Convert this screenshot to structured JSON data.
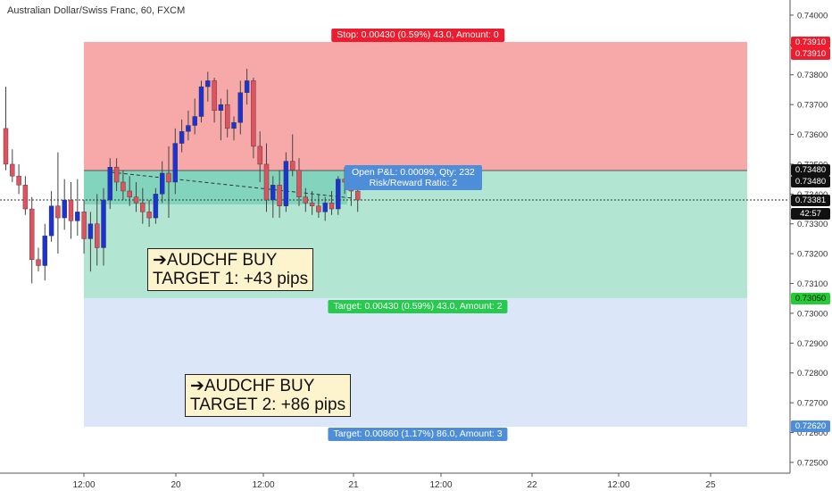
{
  "title": "Australian Dollar/Swiss Franc, 60, FXCM",
  "colors": {
    "stop_zone": "#f7a9a9",
    "target1_zone": "#b2e6d2",
    "target1_overlap": "#82d4bd",
    "target2_zone": "#dbe7f8",
    "bull_candle": "#1c33d4",
    "bear_candle": "#e05260",
    "stop_tag": "#ee1c2f",
    "target1_tag": "#27c94f",
    "target2_tag": "#4e8ed9"
  },
  "price_axis": {
    "ticks": [
      "0.74000",
      "0.73900",
      "0.73800",
      "0.73700",
      "0.73600",
      "0.73500",
      "0.73400",
      "0.73300",
      "0.73200",
      "0.73100",
      "0.73000",
      "0.72900",
      "0.72800",
      "0.72700",
      "0.72600",
      "0.72500"
    ],
    "labels": [
      {
        "text": "0.73910",
        "kind": "stop"
      },
      {
        "text": "0.73910",
        "kind": "stop"
      },
      {
        "text": "0.73480",
        "kind": "entry"
      },
      {
        "text": "0.73480",
        "kind": "entry"
      },
      {
        "text": "0.73381",
        "kind": "current"
      },
      {
        "text": "42:57",
        "kind": "timer"
      },
      {
        "text": "0.73050",
        "kind": "target1"
      },
      {
        "text": "0.72620",
        "kind": "target2"
      }
    ]
  },
  "time_axis": {
    "ticks": [
      "12:00",
      "20",
      "12:00",
      "21",
      "12:00",
      "22",
      "12:00",
      "25"
    ]
  },
  "position": {
    "stop_label": "Stop: 0.00430 (0.59%) 43.0, Amount: 0",
    "target1_label": "Target: 0.00430 (0.59%) 43.0, Amount: 2",
    "target2_label": "Target: 0.00860 (1.17%) 86.0, Amount: 3",
    "pnl_line1": "Open P&L: 0.00099, Qty: 232",
    "pnl_line2": "Risk/Reward Ratio: 2"
  },
  "notes": [
    {
      "line1": "➔AUDCHF BUY",
      "line2": "TARGET 1: +43 pips"
    },
    {
      "line1": "➔AUDCHF BUY",
      "line2": "TARGET 2: +86 pips"
    }
  ],
  "chart_data": {
    "type": "candlestick",
    "title": "Australian Dollar/Swiss Franc, 60, FXCM",
    "xlabel": "",
    "ylabel": "",
    "ylim": [
      0.7246,
      0.7408
    ],
    "grid": false,
    "levels": {
      "stop": 0.7391,
      "entry": 0.7348,
      "target1": 0.7305,
      "target2": 0.7262,
      "current": 0.73381
    },
    "candles": [
      {
        "o": 0.7362,
        "h": 0.7376,
        "l": 0.7348,
        "c": 0.735
      },
      {
        "o": 0.735,
        "h": 0.7355,
        "l": 0.7344,
        "c": 0.7346
      },
      {
        "o": 0.7346,
        "h": 0.735,
        "l": 0.734,
        "c": 0.7343
      },
      {
        "o": 0.7343,
        "h": 0.7346,
        "l": 0.7333,
        "c": 0.7335
      },
      {
        "o": 0.7335,
        "h": 0.7339,
        "l": 0.731,
        "c": 0.7318
      },
      {
        "o": 0.7318,
        "h": 0.7322,
        "l": 0.7314,
        "c": 0.7316
      },
      {
        "o": 0.7316,
        "h": 0.733,
        "l": 0.7311,
        "c": 0.7326
      },
      {
        "o": 0.7326,
        "h": 0.7341,
        "l": 0.7324,
        "c": 0.7336
      },
      {
        "o": 0.7336,
        "h": 0.7354,
        "l": 0.732,
        "c": 0.7332
      },
      {
        "o": 0.7332,
        "h": 0.7345,
        "l": 0.7328,
        "c": 0.7338
      },
      {
        "o": 0.7338,
        "h": 0.7344,
        "l": 0.7325,
        "c": 0.7331
      },
      {
        "o": 0.7331,
        "h": 0.7345,
        "l": 0.7326,
        "c": 0.7334
      },
      {
        "o": 0.7334,
        "h": 0.7338,
        "l": 0.732,
        "c": 0.7325
      },
      {
        "o": 0.7325,
        "h": 0.7334,
        "l": 0.7314,
        "c": 0.733
      },
      {
        "o": 0.733,
        "h": 0.734,
        "l": 0.7316,
        "c": 0.7322
      },
      {
        "o": 0.7322,
        "h": 0.7342,
        "l": 0.7316,
        "c": 0.7338
      },
      {
        "o": 0.7338,
        "h": 0.7352,
        "l": 0.7335,
        "c": 0.7349
      },
      {
        "o": 0.7349,
        "h": 0.7352,
        "l": 0.7341,
        "c": 0.7344
      },
      {
        "o": 0.7344,
        "h": 0.7348,
        "l": 0.7338,
        "c": 0.7341
      },
      {
        "o": 0.7341,
        "h": 0.7346,
        "l": 0.7336,
        "c": 0.7339
      },
      {
        "o": 0.7339,
        "h": 0.7344,
        "l": 0.7334,
        "c": 0.7337
      },
      {
        "o": 0.7337,
        "h": 0.7342,
        "l": 0.733,
        "c": 0.7334
      },
      {
        "o": 0.7334,
        "h": 0.7338,
        "l": 0.7329,
        "c": 0.7332
      },
      {
        "o": 0.7332,
        "h": 0.7342,
        "l": 0.733,
        "c": 0.734
      },
      {
        "o": 0.734,
        "h": 0.7351,
        "l": 0.7337,
        "c": 0.7347
      },
      {
        "o": 0.7347,
        "h": 0.7356,
        "l": 0.7332,
        "c": 0.7344
      },
      {
        "o": 0.7344,
        "h": 0.7362,
        "l": 0.734,
        "c": 0.7357
      },
      {
        "o": 0.7357,
        "h": 0.7365,
        "l": 0.7354,
        "c": 0.7361
      },
      {
        "o": 0.7361,
        "h": 0.7368,
        "l": 0.7358,
        "c": 0.7363
      },
      {
        "o": 0.7363,
        "h": 0.7372,
        "l": 0.736,
        "c": 0.7366
      },
      {
        "o": 0.7366,
        "h": 0.7378,
        "l": 0.7364,
        "c": 0.7376
      },
      {
        "o": 0.7376,
        "h": 0.7381,
        "l": 0.7371,
        "c": 0.7378
      },
      {
        "o": 0.7378,
        "h": 0.7379,
        "l": 0.7364,
        "c": 0.7368
      },
      {
        "o": 0.7368,
        "h": 0.7372,
        "l": 0.7358,
        "c": 0.737
      },
      {
        "o": 0.737,
        "h": 0.7375,
        "l": 0.7359,
        "c": 0.7362
      },
      {
        "o": 0.7362,
        "h": 0.7366,
        "l": 0.7358,
        "c": 0.7364
      },
      {
        "o": 0.7364,
        "h": 0.7378,
        "l": 0.736,
        "c": 0.7374
      },
      {
        "o": 0.7374,
        "h": 0.7382,
        "l": 0.737,
        "c": 0.7378
      },
      {
        "o": 0.7378,
        "h": 0.7379,
        "l": 0.7352,
        "c": 0.7356
      },
      {
        "o": 0.7356,
        "h": 0.7361,
        "l": 0.7344,
        "c": 0.735
      },
      {
        "o": 0.735,
        "h": 0.7357,
        "l": 0.7334,
        "c": 0.7338
      },
      {
        "o": 0.7338,
        "h": 0.7346,
        "l": 0.7332,
        "c": 0.7343
      },
      {
        "o": 0.7343,
        "h": 0.7348,
        "l": 0.7332,
        "c": 0.7336
      },
      {
        "o": 0.7336,
        "h": 0.7354,
        "l": 0.7334,
        "c": 0.7351
      },
      {
        "o": 0.7351,
        "h": 0.736,
        "l": 0.7346,
        "c": 0.7348
      },
      {
        "o": 0.7348,
        "h": 0.7352,
        "l": 0.7336,
        "c": 0.7339
      },
      {
        "o": 0.7339,
        "h": 0.7342,
        "l": 0.7334,
        "c": 0.7337
      },
      {
        "o": 0.7337,
        "h": 0.7341,
        "l": 0.7333,
        "c": 0.7336
      },
      {
        "o": 0.7336,
        "h": 0.734,
        "l": 0.7332,
        "c": 0.7334
      },
      {
        "o": 0.7334,
        "h": 0.7339,
        "l": 0.7331,
        "c": 0.7337
      },
      {
        "o": 0.7337,
        "h": 0.7341,
        "l": 0.7333,
        "c": 0.7335
      },
      {
        "o": 0.7335,
        "h": 0.7346,
        "l": 0.7333,
        "c": 0.7345
      },
      {
        "o": 0.7345,
        "h": 0.7349,
        "l": 0.734,
        "c": 0.7344
      },
      {
        "o": 0.7344,
        "h": 0.7347,
        "l": 0.7336,
        "c": 0.7341
      },
      {
        "o": 0.7341,
        "h": 0.7344,
        "l": 0.7334,
        "c": 0.7338
      }
    ]
  }
}
